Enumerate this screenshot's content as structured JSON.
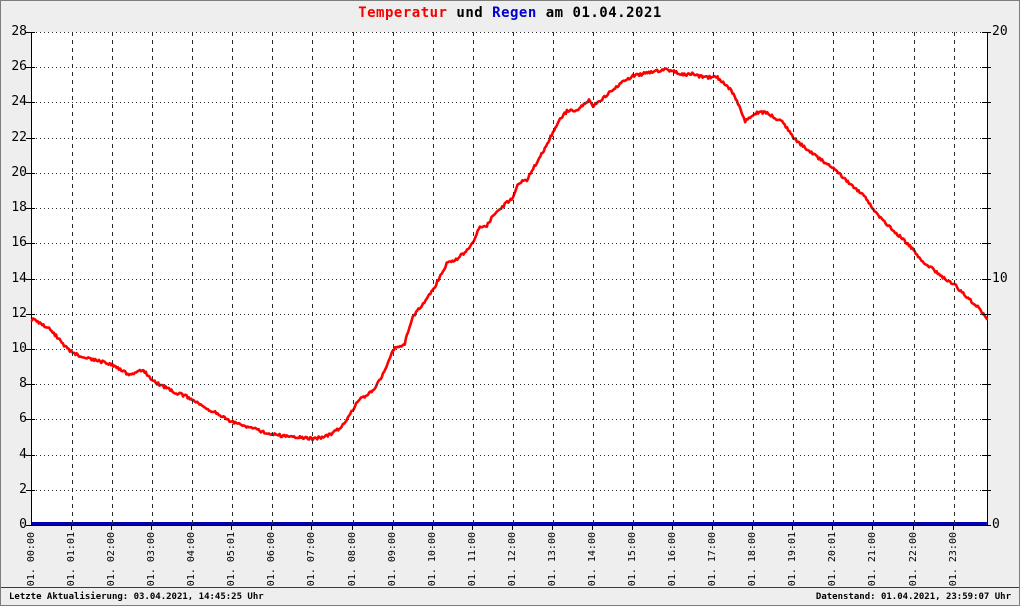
{
  "window": {
    "background": "#eeeeee",
    "plot_background": "#ffffff",
    "border_color": "#7d7d7d"
  },
  "title": {
    "parts": [
      {
        "text": "Temperatur",
        "color": "#f40000"
      },
      {
        "text": " und ",
        "color": "#000000"
      },
      {
        "text": "Regen",
        "color": "#0000cc"
      },
      {
        "text": " am 01.04.2021",
        "color": "#000000"
      }
    ]
  },
  "status_bar": {
    "last_update": "Letzte Aktualisierung: 03.04.2021, 14:45:25 Uhr",
    "data_state": "Datenstand: 01.04.2021, 23:59:07 Uhr"
  },
  "chart_data": {
    "type": "line",
    "title": "Temperatur und Regen am 01.04.2021",
    "grid": true,
    "legend_position": "none",
    "left_axis": {
      "min": 0,
      "max": 28,
      "tick_step": 2
    },
    "right_axis": {
      "min": 0,
      "max": 20,
      "labeled_ticks": [
        20,
        10,
        0
      ]
    },
    "x_axis": {
      "hours_span": 23.8333,
      "grid_interval_hours": 1,
      "labels": [
        "01. 00:00",
        "01. 01:01",
        "01. 02:00",
        "01. 03:00",
        "01. 04:00",
        "01. 05:01",
        "01. 06:00",
        "01. 07:00",
        "01. 08:00",
        "01. 09:00",
        "01. 10:00",
        "01. 11:00",
        "01. 12:00",
        "01. 13:00",
        "01. 14:00",
        "01. 15:00",
        "01. 16:00",
        "01. 17:00",
        "01. 18:00",
        "01. 19:01",
        "01. 20:01",
        "01. 21:00",
        "01. 22:00",
        "01. 23:00"
      ]
    },
    "series": [
      {
        "name": "Temperatur",
        "color": "#ff0000",
        "axis": "left",
        "points": [
          [
            0,
            11.7
          ],
          [
            0.2,
            11.45
          ],
          [
            0.4,
            11.2
          ],
          [
            0.6,
            10.75
          ],
          [
            0.8,
            10.2
          ],
          [
            1,
            9.8
          ],
          [
            1.2,
            9.6
          ],
          [
            1.4,
            9.45
          ],
          [
            1.7,
            9.3
          ],
          [
            2,
            9.1
          ],
          [
            2.2,
            8.85
          ],
          [
            2.45,
            8.5
          ],
          [
            2.6,
            8.6
          ],
          [
            2.75,
            8.85
          ],
          [
            2.9,
            8.5
          ],
          [
            3,
            8.2
          ],
          [
            3.3,
            7.85
          ],
          [
            3.6,
            7.5
          ],
          [
            3.8,
            7.35
          ],
          [
            4,
            7.15
          ],
          [
            4.3,
            6.7
          ],
          [
            4.6,
            6.35
          ],
          [
            4.9,
            5.95
          ],
          [
            5.1,
            5.8
          ],
          [
            5.35,
            5.6
          ],
          [
            5.6,
            5.45
          ],
          [
            5.8,
            5.25
          ],
          [
            6,
            5.15
          ],
          [
            6.3,
            5.05
          ],
          [
            6.6,
            5.0
          ],
          [
            6.8,
            4.95
          ],
          [
            7,
            4.9
          ],
          [
            7.3,
            5.0
          ],
          [
            7.5,
            5.2
          ],
          [
            7.7,
            5.55
          ],
          [
            7.85,
            5.95
          ],
          [
            8,
            6.5
          ],
          [
            8.15,
            7.1
          ],
          [
            8.3,
            7.3
          ],
          [
            8.5,
            7.6
          ],
          [
            8.7,
            8.3
          ],
          [
            8.85,
            9.0
          ],
          [
            9,
            9.9
          ],
          [
            9.1,
            10.1
          ],
          [
            9.3,
            10.3
          ],
          [
            9.5,
            11.8
          ],
          [
            9.7,
            12.4
          ],
          [
            10,
            13.3
          ],
          [
            10.2,
            14.2
          ],
          [
            10.35,
            14.85
          ],
          [
            10.55,
            15.0
          ],
          [
            10.8,
            15.5
          ],
          [
            11,
            16.0
          ],
          [
            11.15,
            16.85
          ],
          [
            11.35,
            17.0
          ],
          [
            11.55,
            17.7
          ],
          [
            11.8,
            18.2
          ],
          [
            12,
            18.6
          ],
          [
            12.15,
            19.45
          ],
          [
            12.35,
            19.6
          ],
          [
            12.6,
            20.6
          ],
          [
            12.8,
            21.4
          ],
          [
            13,
            22.3
          ],
          [
            13.15,
            23.0
          ],
          [
            13.35,
            23.5
          ],
          [
            13.6,
            23.55
          ],
          [
            13.8,
            23.95
          ],
          [
            13.9,
            24.1
          ],
          [
            14,
            23.8
          ],
          [
            14.2,
            24.15
          ],
          [
            14.4,
            24.55
          ],
          [
            14.7,
            25.1
          ],
          [
            15,
            25.5
          ],
          [
            15.3,
            25.65
          ],
          [
            15.6,
            25.78
          ],
          [
            15.85,
            25.85
          ],
          [
            16.05,
            25.75
          ],
          [
            16.25,
            25.55
          ],
          [
            16.45,
            25.65
          ],
          [
            16.65,
            25.5
          ],
          [
            16.85,
            25.4
          ],
          [
            17.05,
            25.5
          ],
          [
            17.25,
            25.15
          ],
          [
            17.45,
            24.7
          ],
          [
            17.65,
            23.8
          ],
          [
            17.8,
            22.9
          ],
          [
            17.95,
            23.25
          ],
          [
            18.15,
            23.45
          ],
          [
            18.35,
            23.4
          ],
          [
            18.55,
            23.1
          ],
          [
            18.75,
            22.85
          ],
          [
            19,
            22.0
          ],
          [
            19.3,
            21.4
          ],
          [
            19.6,
            20.9
          ],
          [
            19.8,
            20.55
          ],
          [
            20,
            20.3
          ],
          [
            20.3,
            19.6
          ],
          [
            20.6,
            19.0
          ],
          [
            20.8,
            18.6
          ],
          [
            21,
            17.9
          ],
          [
            21.3,
            17.15
          ],
          [
            21.6,
            16.5
          ],
          [
            21.8,
            16.1
          ],
          [
            22,
            15.6
          ],
          [
            22.2,
            14.95
          ],
          [
            22.45,
            14.6
          ],
          [
            22.7,
            14.1
          ],
          [
            23,
            13.7
          ],
          [
            23.3,
            13.0
          ],
          [
            23.6,
            12.4
          ],
          [
            23.83,
            11.7
          ]
        ]
      },
      {
        "name": "Regen",
        "color": "#0000b0",
        "axis": "right",
        "points": [
          [
            0,
            0
          ],
          [
            23.83,
            0
          ]
        ]
      }
    ]
  }
}
